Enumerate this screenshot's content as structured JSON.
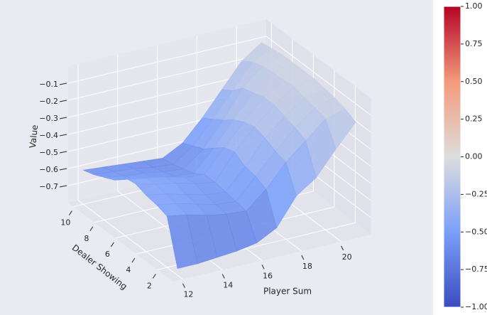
{
  "chart_data": {
    "type": "surface",
    "x_label": "Player Sum",
    "y_label": "Dealer Showing",
    "z_label": "Value",
    "x": [
      12,
      13,
      14,
      15,
      16,
      17,
      18,
      19,
      20,
      21
    ],
    "y": [
      1,
      2,
      3,
      4,
      5,
      6,
      7,
      8,
      9,
      10
    ],
    "z": [
      [
        -0.76,
        -0.76,
        -0.75,
        -0.74,
        -0.72,
        -0.66,
        -0.5,
        -0.42,
        -0.28,
        -0.15
      ],
      [
        -0.5,
        -0.52,
        -0.55,
        -0.57,
        -0.58,
        -0.48,
        -0.35,
        -0.25,
        -0.15,
        -0.12
      ],
      [
        -0.48,
        -0.5,
        -0.53,
        -0.56,
        -0.57,
        -0.45,
        -0.33,
        -0.22,
        -0.13,
        -0.1
      ],
      [
        -0.47,
        -0.49,
        -0.52,
        -0.55,
        -0.56,
        -0.44,
        -0.3,
        -0.2,
        -0.12,
        -0.09
      ],
      [
        -0.45,
        -0.48,
        -0.5,
        -0.53,
        -0.55,
        -0.4,
        -0.28,
        -0.18,
        -0.1,
        -0.08
      ],
      [
        -0.46,
        -0.48,
        -0.51,
        -0.54,
        -0.55,
        -0.42,
        -0.3,
        -0.18,
        -0.11,
        -0.08
      ],
      [
        -0.52,
        -0.54,
        -0.56,
        -0.58,
        -0.59,
        -0.47,
        -0.33,
        -0.2,
        -0.11,
        -0.08
      ],
      [
        -0.55,
        -0.57,
        -0.58,
        -0.6,
        -0.61,
        -0.52,
        -0.38,
        -0.22,
        -0.12,
        -0.08
      ],
      [
        -0.58,
        -0.59,
        -0.6,
        -0.62,
        -0.63,
        -0.55,
        -0.42,
        -0.28,
        -0.14,
        -0.09
      ],
      [
        -0.6,
        -0.61,
        -0.62,
        -0.63,
        -0.64,
        -0.58,
        -0.46,
        -0.32,
        -0.18,
        -0.1
      ]
    ],
    "xlim": [
      11.5,
      21.5
    ],
    "ylim": [
      0.5,
      10.5
    ],
    "zlim": [
      -0.8,
      0
    ],
    "xticks": [
      12,
      14,
      16,
      18,
      20
    ],
    "yticks": [
      2,
      4,
      6,
      8,
      10
    ],
    "zticks": [
      {
        "value": -0.1,
        "label": "−0.1"
      },
      {
        "value": -0.2,
        "label": "−0.2"
      },
      {
        "value": -0.3,
        "label": "−0.3"
      },
      {
        "value": -0.4,
        "label": "−0.4"
      },
      {
        "value": -0.5,
        "label": "−0.5"
      },
      {
        "value": -0.6,
        "label": "−0.6"
      },
      {
        "value": -0.7,
        "label": "−0.7"
      }
    ],
    "colormap": [
      "#3b4cc0",
      "#7b9ff9",
      "#dddddd",
      "#f49a7b",
      "#b40426"
    ],
    "clim": [
      -1,
      1
    ],
    "colorbar_ticks": [
      {
        "value": 1,
        "label": "1.00"
      },
      {
        "value": 0.75,
        "label": "0.75"
      },
      {
        "value": 0.5,
        "label": "0.50"
      },
      {
        "value": 0.25,
        "label": "0.25"
      },
      {
        "value": 0,
        "label": "0.00"
      },
      {
        "value": -0.25,
        "label": "−0.25"
      },
      {
        "value": -0.5,
        "label": "−0.50"
      },
      {
        "value": -0.75,
        "label": "−0.75"
      },
      {
        "value": -1,
        "label": "−1.00"
      }
    ],
    "grid": true
  }
}
